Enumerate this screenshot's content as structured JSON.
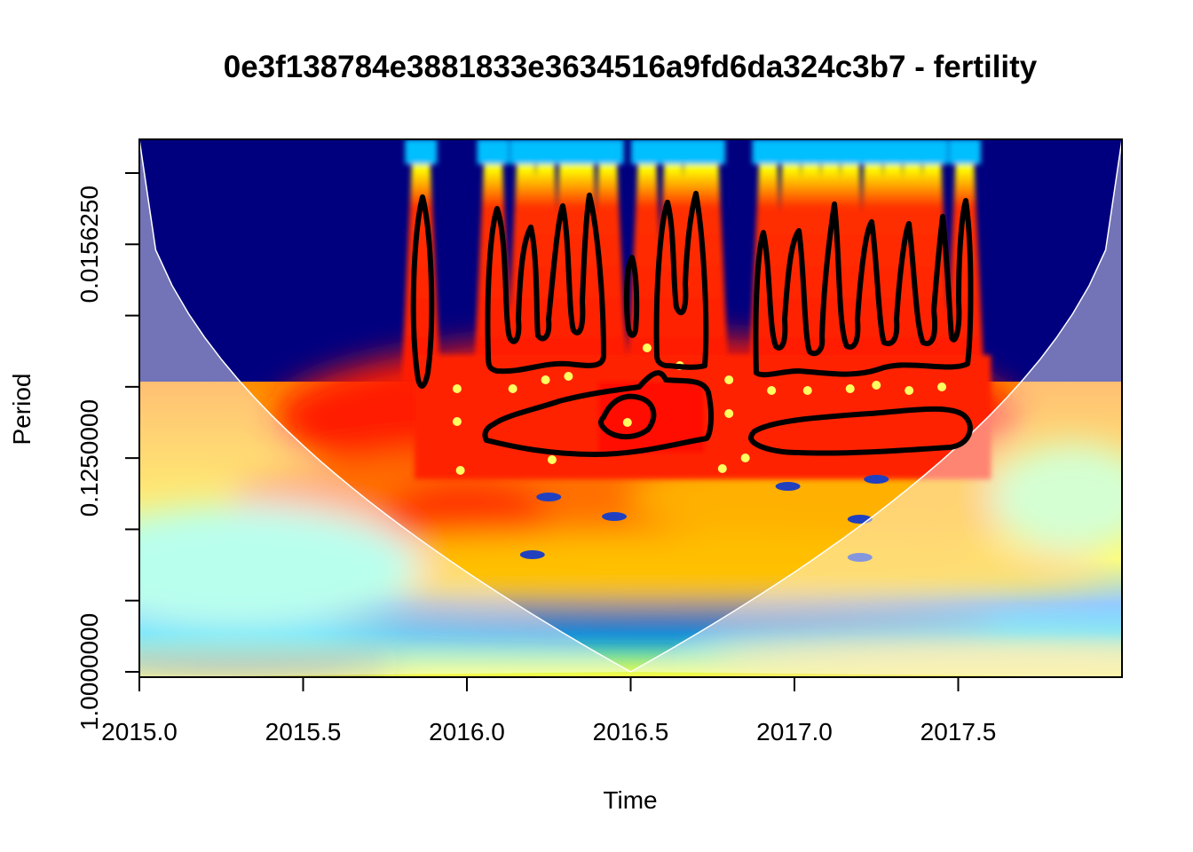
{
  "chart_data": {
    "type": "heatmap",
    "title": "0e3f138784e3881833e3634516a9fd6da324c3b7 - fertility",
    "xlabel": "Time",
    "ylabel": "Period",
    "x_ticks": [
      "2015.0",
      "2015.5",
      "2016.0",
      "2016.5",
      "2017.0",
      "2017.5"
    ],
    "x_tick_values": [
      2015.0,
      2015.5,
      2016.0,
      2016.5,
      2017.0,
      2017.5
    ],
    "y_tick_labels": [
      "0.0156250",
      "0.1250000",
      "1.0000000"
    ],
    "y_tick_values": [
      0.015625,
      0.125,
      1.0
    ],
    "y_scale": "log2 (reversed: small periods at top)",
    "xlim": [
      2015.0,
      2018.0
    ],
    "ylim": [
      0.0078125,
      1.0
    ],
    "colormap": "jet (dark blue = low power, dark red = high power)",
    "cone_of_influence": true,
    "significance_contours": true,
    "colors": {
      "low": "#00007f",
      "mid_low": "#00bfff",
      "mid": "#ffff00",
      "mid_high": "#ff3000",
      "high": "#7f0000",
      "contour": "#000000",
      "coi_line": "#ffffff"
    }
  }
}
